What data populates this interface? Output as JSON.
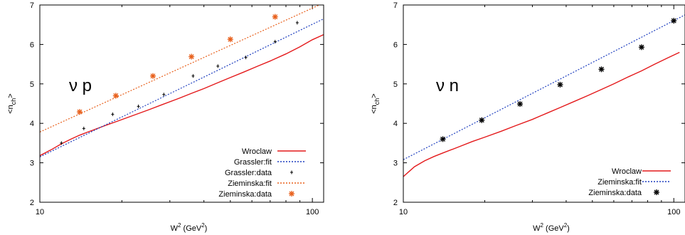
{
  "chart_data": [
    {
      "type": "line",
      "annotation": "ν p",
      "xlabel_main": "W",
      "xlabel_sup": "2",
      "xlabel_unit_open": " (GeV",
      "xlabel_unit_sup": "2",
      "xlabel_unit_close": ")",
      "ylabel": "<n_ch>",
      "xscale": "log",
      "xlim": [
        10,
        110
      ],
      "ylim": [
        2,
        7
      ],
      "xticks": [
        {
          "v": 10,
          "label": "10"
        },
        {
          "v": 100,
          "label": "100"
        }
      ],
      "yticks": [
        2,
        3,
        4,
        5,
        6,
        7
      ],
      "legend_position": "bottom-right",
      "series": [
        {
          "name": "Wroclaw",
          "kind": "line",
          "color": "#e41a1c",
          "dash": "none",
          "x": [
            10,
            11,
            12,
            13,
            14,
            15,
            17,
            19,
            22,
            25,
            28,
            32,
            36,
            40,
            45,
            50,
            56,
            63,
            70,
            80,
            90,
            100,
            110
          ],
          "y": [
            3.18,
            3.33,
            3.48,
            3.6,
            3.7,
            3.78,
            3.92,
            4.04,
            4.2,
            4.34,
            4.47,
            4.62,
            4.76,
            4.88,
            5.03,
            5.16,
            5.3,
            5.45,
            5.58,
            5.76,
            5.94,
            6.12,
            6.25
          ]
        },
        {
          "name": "Grassler:fit",
          "kind": "line",
          "color": "#1f3fbf",
          "dash": "2,2",
          "x": [
            10,
            110
          ],
          "y": [
            3.15,
            6.65
          ]
        },
        {
          "name": "Grassler:data",
          "kind": "points",
          "marker": "plus",
          "color": "#000000",
          "x": [
            12,
            14.5,
            18.5,
            23,
            28.5,
            36.5,
            45,
            57,
            73,
            88
          ],
          "y": [
            3.5,
            3.87,
            4.23,
            4.43,
            4.73,
            5.2,
            5.45,
            5.67,
            6.07,
            6.55
          ]
        },
        {
          "name": "Zieminska:fit",
          "kind": "line",
          "color": "#e8601c",
          "dash": "2,2",
          "x": [
            10,
            110
          ],
          "y": [
            3.78,
            7.05
          ]
        },
        {
          "name": "Zieminska:data",
          "kind": "points",
          "marker": "star",
          "color": "#e8601c",
          "x": [
            14,
            19,
            26,
            36,
            50,
            73
          ],
          "y": [
            4.29,
            4.7,
            5.2,
            5.69,
            6.13,
            6.7
          ]
        }
      ]
    },
    {
      "type": "line",
      "annotation": "ν n",
      "xlabel_main": "W",
      "xlabel_sup": "2",
      "xlabel_unit_open": " (GeV",
      "xlabel_unit_sup": "2",
      "xlabel_unit_close": ")",
      "ylabel": "<n_ch>",
      "xscale": "log",
      "xlim": [
        10,
        110
      ],
      "ylim": [
        2,
        7
      ],
      "xticks": [
        {
          "v": 10,
          "label": "10"
        },
        {
          "v": 100,
          "label": "100"
        }
      ],
      "yticks": [
        2,
        3,
        4,
        5,
        6,
        7
      ],
      "legend_position": "bottom-right",
      "series": [
        {
          "name": "Wroclaw",
          "kind": "line",
          "color": "#e41a1c",
          "dash": "none",
          "x": [
            10,
            10.5,
            11,
            12,
            13,
            14,
            16,
            18,
            20,
            23,
            26,
            30,
            34,
            38,
            43,
            48,
            54,
            60,
            68,
            76,
            85,
            95,
            105
          ],
          "y": [
            2.65,
            2.78,
            2.9,
            3.05,
            3.16,
            3.25,
            3.4,
            3.54,
            3.65,
            3.8,
            3.94,
            4.1,
            4.26,
            4.4,
            4.56,
            4.7,
            4.86,
            5.0,
            5.18,
            5.33,
            5.5,
            5.66,
            5.8
          ]
        },
        {
          "name": "Zieminska:fit",
          "kind": "line",
          "color": "#1f3fbf",
          "dash": "2,2",
          "x": [
            10,
            110
          ],
          "y": [
            3.08,
            6.75
          ]
        },
        {
          "name": "Zieminska:data",
          "kind": "points",
          "marker": "star",
          "color": "#000000",
          "x": [
            14,
            19.5,
            27,
            38,
            54,
            76,
            100
          ],
          "y": [
            3.6,
            4.08,
            4.49,
            4.98,
            5.37,
            5.93,
            6.6
          ]
        }
      ]
    }
  ]
}
